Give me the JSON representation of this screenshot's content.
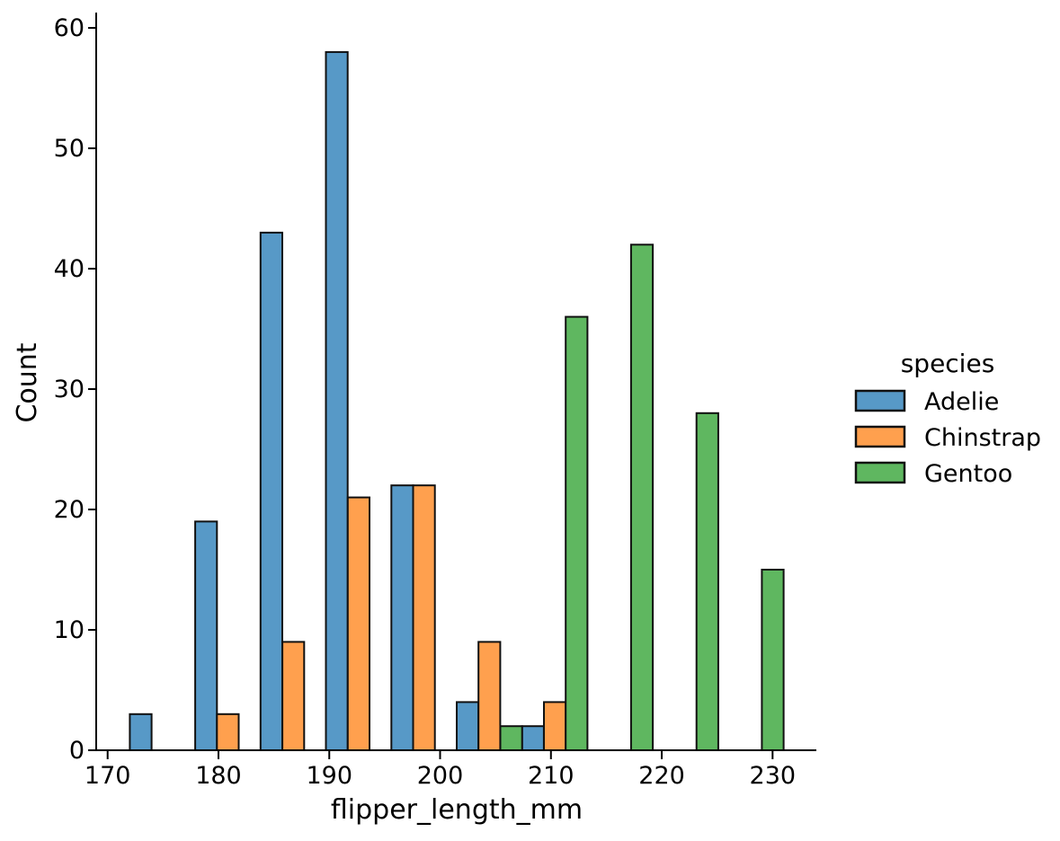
{
  "figure": {
    "background": "#ffffff"
  },
  "chart_data": {
    "type": "bar",
    "subtype": "histogram-dodged",
    "title": "",
    "xlabel": "flipper_length_mm",
    "ylabel": "Count",
    "xlim": [
      169.05,
      233.95
    ],
    "ylim": [
      0,
      61.2
    ],
    "xticks": [
      170,
      180,
      190,
      200,
      210,
      220,
      230
    ],
    "yticks": [
      0,
      10,
      20,
      30,
      40,
      50,
      60
    ],
    "grid": false,
    "spines": [
      "left",
      "bottom"
    ],
    "bin_edges": [
      172.0,
      177.9,
      183.8,
      189.7,
      195.6,
      201.5,
      207.4,
      213.3,
      219.2,
      225.1,
      231.0
    ],
    "series": [
      {
        "name": "Adelie",
        "color": "#5799C7",
        "edge_color": "#111111",
        "bin_counts": [
          3,
          19,
          43,
          58,
          22,
          4,
          2,
          0,
          0,
          0
        ]
      },
      {
        "name": "Chinstrap",
        "color": "#FFA04E",
        "edge_color": "#111111",
        "bin_counts": [
          0,
          3,
          9,
          21,
          22,
          9,
          4,
          0,
          0,
          0
        ]
      },
      {
        "name": "Gentoo",
        "color": "#5FB760",
        "edge_color": "#111111",
        "bin_counts": [
          0,
          0,
          0,
          0,
          0,
          2,
          36,
          42,
          28,
          15
        ]
      }
    ],
    "legend": {
      "title": "species",
      "position": "right",
      "entries": [
        {
          "label": "Adelie",
          "color": "#5799C7"
        },
        {
          "label": "Chinstrap",
          "color": "#FFA04E"
        },
        {
          "label": "Gentoo",
          "color": "#5FB760"
        }
      ]
    }
  }
}
